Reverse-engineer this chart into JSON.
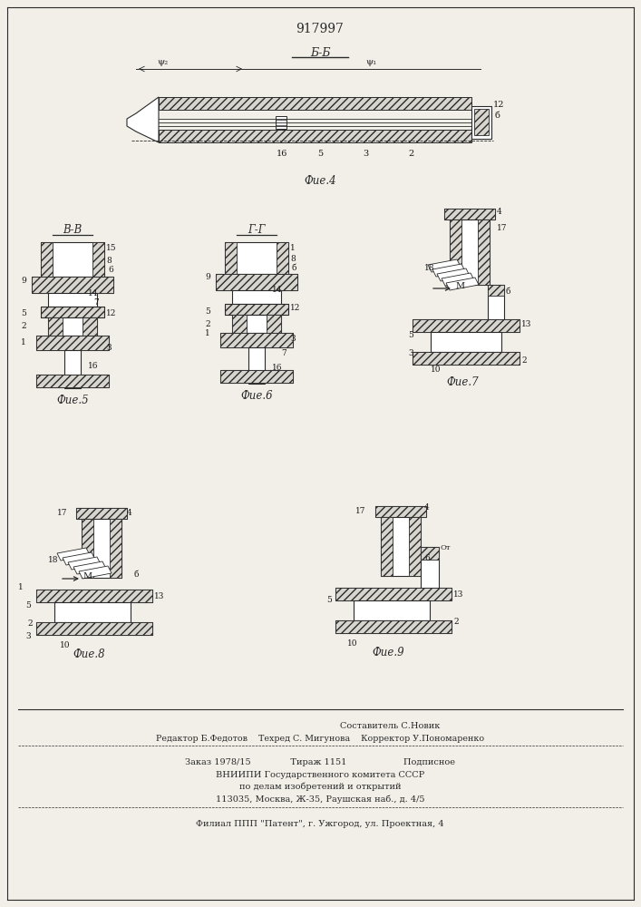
{
  "patent_number": "917997",
  "bg_color": "#f2efe9",
  "line_color": "#2a2a2a",
  "footer_lines": [
    "Составитель С.Новик",
    "Редактор Б.Федотов    Техред С. Мигунова    Корректор У.Пономаренко",
    "Заказ 1978/15              Тираж 1151                    Подписное",
    "ВНИИПИ Государственного комитета СССР",
    "по делам изобретений и открытий",
    "113035, Москва, Ж-35, Раушская наб., д. 4/5",
    "Филиал ППП \"Патент\", г. Ужгород, ул. Проектная, 4"
  ]
}
